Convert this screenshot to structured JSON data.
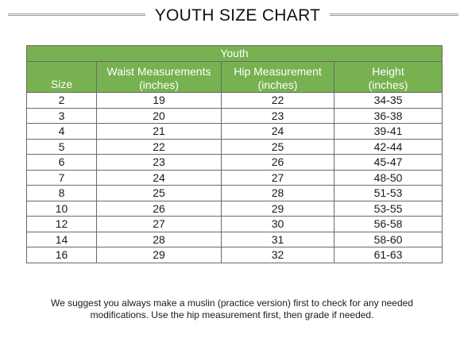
{
  "title": "YOUTH SIZE CHART",
  "table": {
    "group_label": "Youth",
    "headers": [
      {
        "line1": "",
        "line2": "Size"
      },
      {
        "line1": "Waist Measurements",
        "line2": "(inches)"
      },
      {
        "line1": "Hip Measurement",
        "line2": "(inches)"
      },
      {
        "line1": "Height",
        "line2": "(inches)"
      }
    ],
    "rows": [
      {
        "size": "2",
        "waist": "19",
        "hip": "22",
        "height": "34-35"
      },
      {
        "size": "3",
        "waist": "20",
        "hip": "23",
        "height": "36-38"
      },
      {
        "size": "4",
        "waist": "21",
        "hip": "24",
        "height": "39-41"
      },
      {
        "size": "5",
        "waist": "22",
        "hip": "25",
        "height": "42-44"
      },
      {
        "size": "6",
        "waist": "23",
        "hip": "26",
        "height": "45-47"
      },
      {
        "size": "7",
        "waist": "24",
        "hip": "27",
        "height": "48-50"
      },
      {
        "size": "8",
        "waist": "25",
        "hip": "28",
        "height": "51-53"
      },
      {
        "size": "10",
        "waist": "26",
        "hip": "29",
        "height": "53-55"
      },
      {
        "size": "12",
        "waist": "27",
        "hip": "30",
        "height": "56-58"
      },
      {
        "size": "14",
        "waist": "28",
        "hip": "31",
        "height": "58-60"
      },
      {
        "size": "16",
        "waist": "29",
        "hip": "32",
        "height": "61-63"
      }
    ]
  },
  "note": {
    "line1": "We suggest you always make a muslin (practice version) first to check for any needed",
    "line2": "modifications.  Use the hip measurement first, then grade if needed."
  },
  "colors": {
    "header_green": "#77b150",
    "header_text": "#ffffff",
    "grid": "#6a6a6a"
  }
}
